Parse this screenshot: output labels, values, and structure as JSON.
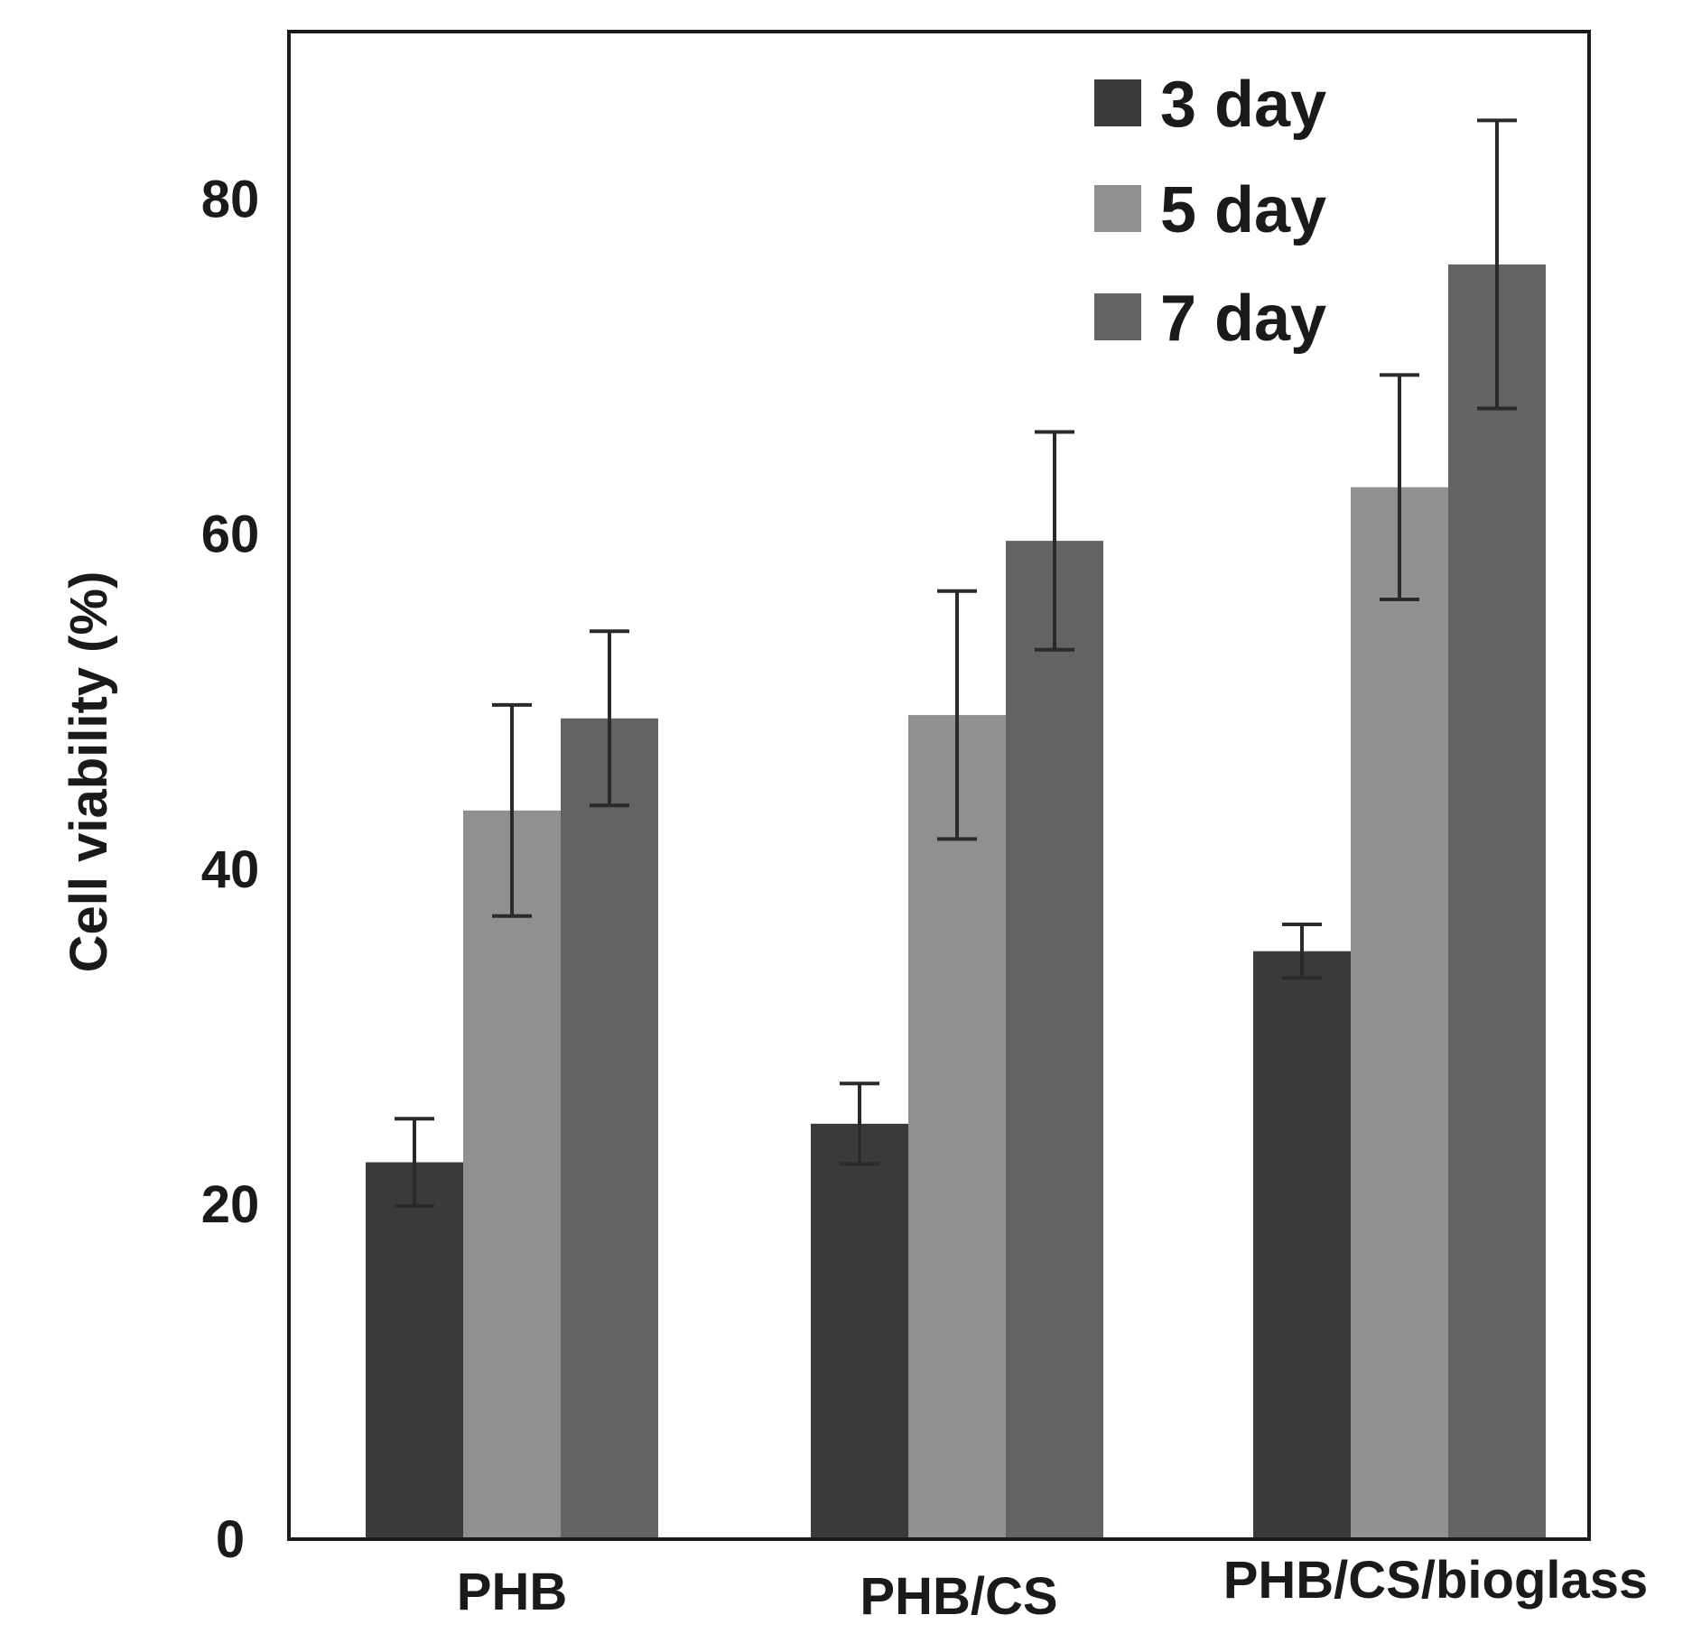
{
  "chart_data": {
    "type": "bar",
    "title": "",
    "xlabel": "",
    "ylabel": "Cell viability (%)",
    "ylim": [
      0,
      90
    ],
    "yticks": [
      0,
      20,
      40,
      60,
      80
    ],
    "ytick_labels": [
      "0",
      "20",
      "40",
      "60",
      "80"
    ],
    "grid": false,
    "legend_position": "top-right",
    "categories": [
      "PHB",
      "PHB/CS",
      "PHB/CS/bioglass"
    ],
    "series": [
      {
        "name": "3 day",
        "color": "#3a3a3a",
        "values": [
          22.5,
          24.8,
          35.1
        ],
        "errors": [
          2.6,
          2.4,
          1.6
        ]
      },
      {
        "name": "5 day",
        "color": "#909090",
        "values": [
          43.5,
          49.2,
          62.8
        ],
        "errors": [
          6.3,
          7.4,
          6.7
        ]
      },
      {
        "name": "7 day",
        "color": "#636363",
        "values": [
          49.0,
          59.6,
          76.1
        ],
        "errors": [
          5.2,
          6.5,
          8.6
        ]
      }
    ]
  }
}
